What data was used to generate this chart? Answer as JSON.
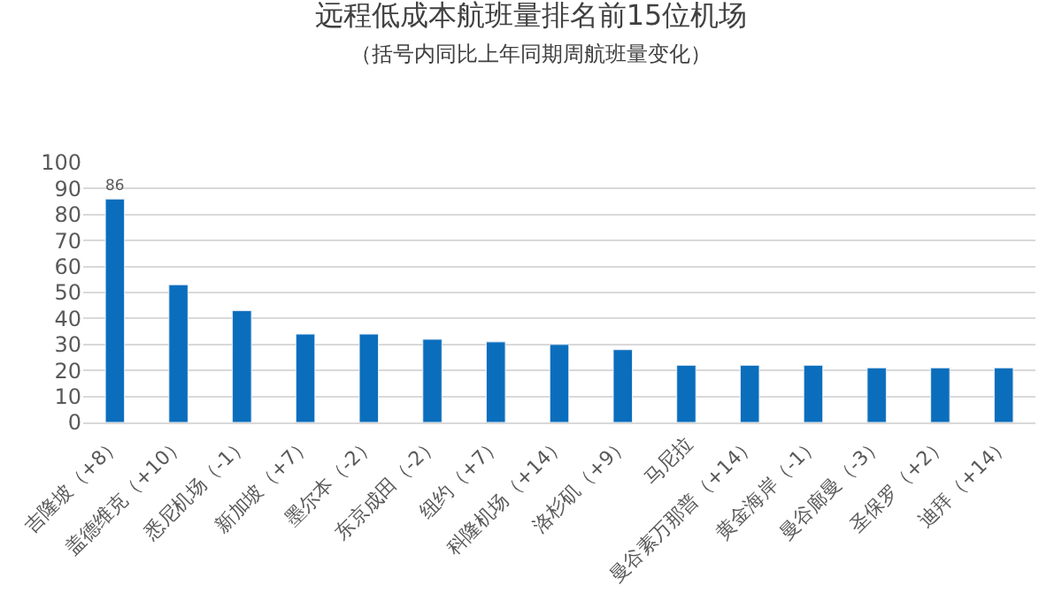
{
  "chart_data": {
    "type": "bar",
    "title": "远程低成本航班量排名前15位机场",
    "subtitle": "（括号内同比上年同期周航班量变化）",
    "categories": [
      "吉隆坡（+8）",
      "盖德维克（+10）",
      "悉尼机场（-1）",
      "新加坡（+7）",
      "墨尔本（-2）",
      "东京成田（-2）",
      "纽约（+7）",
      "科隆机场（+14）",
      "洛杉矶（+9）",
      "马尼拉",
      "曼谷素万那普（+14）",
      "黄金海岸（-1）",
      "曼谷廊曼（-3）",
      "圣保罗（+2）",
      "迪拜（+14）"
    ],
    "values": [
      86,
      53,
      43,
      34,
      34,
      32,
      31,
      30,
      28,
      22,
      22,
      22,
      21,
      21,
      21
    ],
    "value_labels": [
      "86",
      null,
      null,
      null,
      null,
      null,
      null,
      null,
      null,
      null,
      null,
      null,
      null,
      null,
      null
    ],
    "color": "#0a6ebd",
    "ylim": [
      0,
      100
    ],
    "yticks": [
      0,
      10,
      20,
      30,
      40,
      50,
      60,
      70,
      80,
      90,
      100
    ],
    "grid": "y",
    "legend": false
  }
}
